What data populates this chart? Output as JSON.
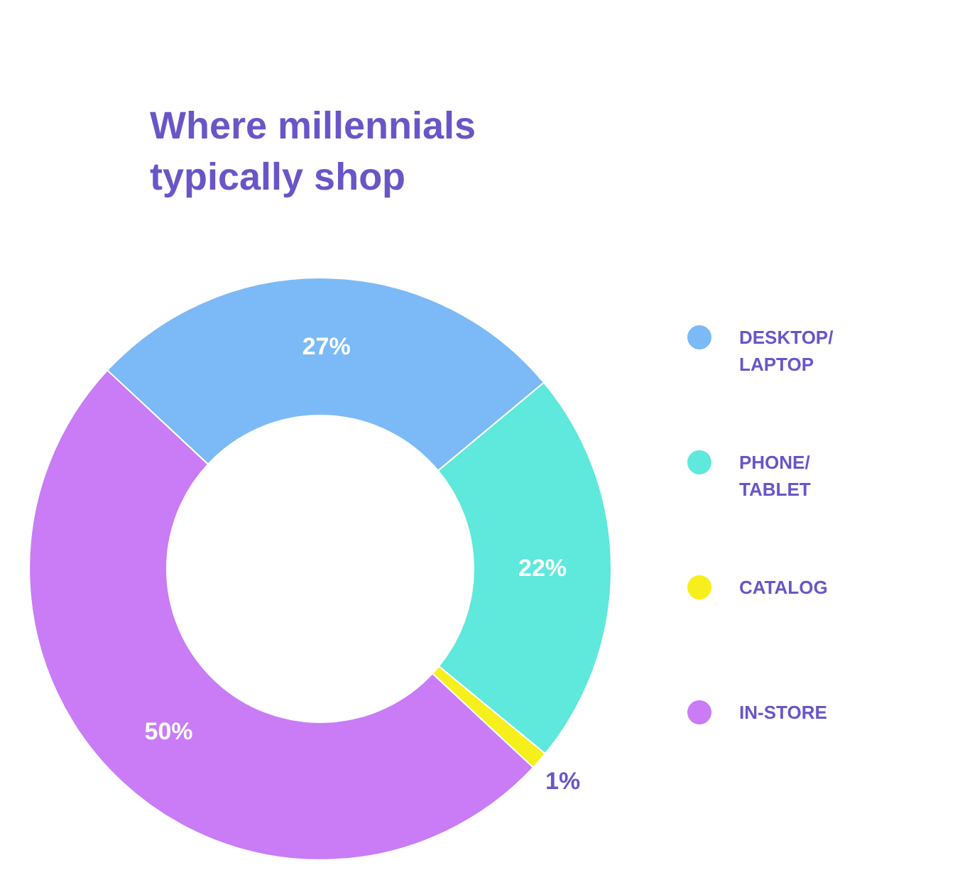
{
  "chart_data": {
    "type": "donut",
    "title": "Where millennials typically shop",
    "categories": [
      "DESKTOP/ LAPTOP",
      "PHONE/ TABLET",
      "CATALOG",
      "IN-STORE"
    ],
    "values": [
      27,
      22,
      1,
      50
    ],
    "colors": [
      "#7bbaf6",
      "#5fe8dc",
      "#f6ef1c",
      "#c97cf6"
    ],
    "value_labels": [
      "27%",
      "22%",
      "1%",
      "50%"
    ],
    "legend": "right"
  }
}
